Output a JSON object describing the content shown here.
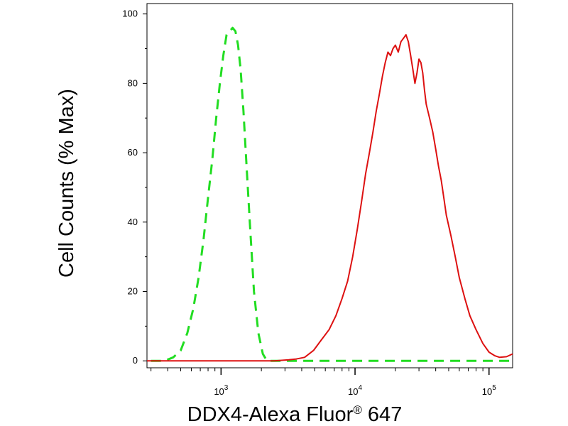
{
  "chart_data": {
    "type": "line",
    "xlabel": "DDX4-Alexa Fluor",
    "xlabel_mark": "®",
    "xlabel_suffix": " 647",
    "ylabel": "Cell Counts (% Max)",
    "x_scale": "log",
    "xlim": [
      280,
      150000
    ],
    "ylim": [
      -2,
      103
    ],
    "x_ticks": [
      {
        "value": 1000,
        "base": "10",
        "exp": "3"
      },
      {
        "value": 10000,
        "base": "10",
        "exp": "4"
      },
      {
        "value": 100000,
        "base": "10",
        "exp": "5"
      }
    ],
    "y_ticks": [
      0,
      20,
      40,
      60,
      80,
      100
    ],
    "grid": false,
    "legend": "none",
    "series": [
      {
        "color": "#22dd22",
        "style": "dashed",
        "x": [
          300,
          380,
          440,
          500,
          560,
          620,
          680,
          740,
          800,
          860,
          920,
          980,
          1040,
          1100,
          1160,
          1220,
          1280,
          1340,
          1400,
          1470,
          1550,
          1650,
          1760,
          1900,
          2050,
          2200,
          2500,
          3000,
          5000,
          10000,
          30000,
          60000,
          100000,
          150000
        ],
        "y": [
          0,
          0,
          1,
          3,
          8,
          15,
          24,
          35,
          47,
          58,
          70,
          80,
          88,
          94,
          95,
          96,
          95,
          91,
          84,
          72,
          56,
          38,
          20,
          8,
          2,
          0,
          0,
          0,
          0,
          0,
          0,
          0,
          0,
          0
        ]
      },
      {
        "color": "#dd1111",
        "style": "solid",
        "x": [
          280,
          1000,
          2500,
          3200,
          3600,
          4200,
          4900,
          5600,
          6400,
          7200,
          8000,
          8800,
          9600,
          10400,
          11200,
          12000,
          12800,
          13600,
          14400,
          15200,
          16000,
          16800,
          17600,
          18400,
          19200,
          20000,
          21000,
          22000,
          23000,
          24000,
          25000,
          26000,
          27000,
          28000,
          29000,
          30000,
          31000,
          32000,
          33000,
          34000,
          36000,
          38000,
          40000,
          42000,
          44000,
          46000,
          48000,
          52000,
          56000,
          60000,
          66000,
          72000,
          80000,
          90000,
          100000,
          110000,
          120000,
          135000,
          150000
        ],
        "y": [
          0,
          0,
          0,
          0.3,
          0.5,
          1,
          3,
          6,
          9,
          13,
          18,
          23,
          30,
          38,
          46,
          54,
          60,
          66,
          72,
          77,
          82,
          86,
          89,
          88,
          90,
          91,
          89,
          92,
          93,
          94,
          92,
          88,
          84,
          80,
          83,
          87,
          86,
          83,
          78,
          74,
          70,
          66,
          61,
          56,
          52,
          47,
          42,
          36,
          30,
          24,
          18,
          13,
          9,
          5,
          2.5,
          1.5,
          1,
          1.2,
          2
        ]
      }
    ]
  }
}
